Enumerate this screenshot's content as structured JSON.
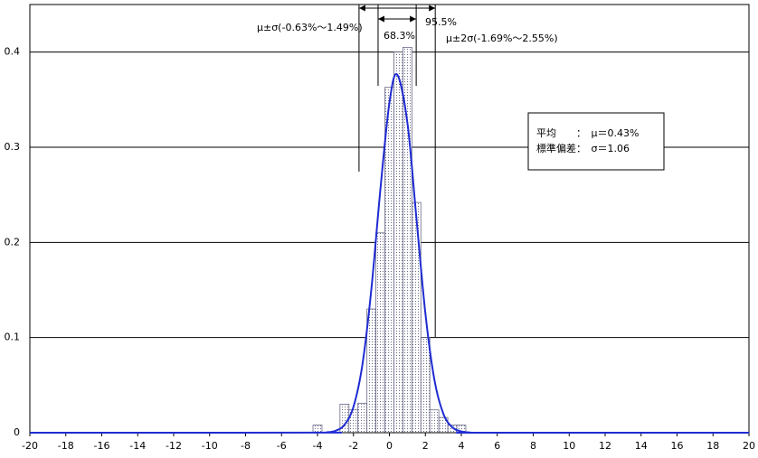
{
  "chart_data": {
    "type": "histogram",
    "bins": [
      -4.25,
      -3.75,
      -3.25,
      -2.75,
      -2.25,
      -1.75,
      -1.25,
      -0.75,
      -0.25,
      0.25,
      0.75,
      1.25,
      1.75,
      2.25,
      2.75,
      3.25,
      3.75,
      4.25
    ],
    "values": [
      0.008,
      0,
      0,
      0.03,
      0.024,
      0.031,
      0.13,
      0.21,
      0.363,
      0.4,
      0.405,
      0.242,
      0.1,
      0.024,
      0.016,
      0.008,
      0.008
    ],
    "color": "#6b6b8a",
    "overlay": {
      "type": "line",
      "color": "#1f2bd1",
      "x": [
        -20,
        -4,
        -3.5,
        -3,
        -2.5,
        -2,
        -1.5,
        -1,
        -0.5,
        0,
        0.43,
        1,
        1.5,
        2,
        2.5,
        3,
        3.5,
        4,
        4.5,
        5,
        20
      ],
      "values": [
        0,
        0.0001,
        0.0004,
        0.002,
        0.0083,
        0.0272,
        0.0717,
        0.1515,
        0.256,
        0.3467,
        0.3764,
        0.3257,
        0.2261,
        0.1257,
        0.0559,
        0.0199,
        0.0057,
        0.0013,
        0.0002,
        0,
        0
      ]
    },
    "xlim": [
      -20,
      20
    ],
    "xticks": [
      -20,
      -18,
      -16,
      -14,
      -12,
      -10,
      -8,
      -6,
      -4,
      -2,
      0,
      2,
      4,
      6,
      8,
      10,
      12,
      14,
      16,
      18,
      20
    ],
    "ylim": [
      0,
      0.45
    ],
    "yticks": [
      0,
      0.1,
      0.2,
      0.3,
      0.4
    ],
    "grid": true,
    "sigma_range": [
      -0.63,
      1.49
    ],
    "two_sigma_range": [
      -1.69,
      2.55
    ],
    "annotations": {
      "sigma_label": "μ±σ(-0.63%～1.49%)",
      "sigma_pct": "68.3%",
      "two_sigma_pct": "95.5%",
      "two_sigma_label": "μ±2σ(-1.69%～2.55%)"
    },
    "stats_box": [
      "平均　　：　μ＝0.43%",
      "標準偏差：　σ＝1.06"
    ]
  }
}
